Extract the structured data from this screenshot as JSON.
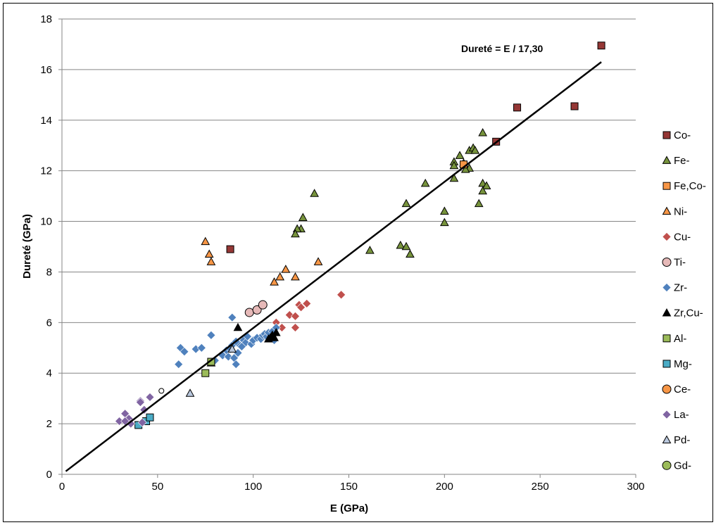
{
  "chart_data": {
    "type": "scatter",
    "title": "",
    "xlabel": "E (GPa)",
    "ylabel": "Dureté (GPa)",
    "xlim": [
      0,
      300
    ],
    "ylim": [
      0,
      18
    ],
    "xticks": [
      0,
      50,
      100,
      150,
      200,
      250,
      300
    ],
    "yticks": [
      0,
      2,
      4,
      6,
      8,
      10,
      12,
      14,
      16,
      18
    ],
    "grid": "horizontal",
    "legend_position": "right",
    "annotation": "Dureté = E / 17,30",
    "fit_line": {
      "x": [
        2,
        282
      ],
      "y": [
        0.12,
        16.3
      ]
    },
    "series": [
      {
        "name": "Co-",
        "marker": "square",
        "color": "#953735",
        "points": [
          [
            282,
            16.95
          ],
          [
            238,
            14.5
          ],
          [
            268,
            14.55
          ],
          [
            227,
            13.15
          ],
          [
            88,
            8.9
          ]
        ]
      },
      {
        "name": "Fe-",
        "marker": "triangle",
        "color": "#77933C",
        "points": [
          [
            220,
            13.5
          ],
          [
            213,
            12.8
          ],
          [
            215,
            12.9
          ],
          [
            216,
            12.8
          ],
          [
            208,
            12.6
          ],
          [
            205,
            12.35
          ],
          [
            205,
            12.2
          ],
          [
            210,
            12.3
          ],
          [
            213,
            12.1
          ],
          [
            211,
            12.05
          ],
          [
            205,
            11.7
          ],
          [
            190,
            11.5
          ],
          [
            220,
            11.5
          ],
          [
            222,
            11.4
          ],
          [
            220,
            11.2
          ],
          [
            132,
            11.1
          ],
          [
            218,
            10.7
          ],
          [
            180,
            10.7
          ],
          [
            200,
            10.4
          ],
          [
            126,
            10.15
          ],
          [
            200,
            9.95
          ],
          [
            125,
            9.7
          ],
          [
            123,
            9.7
          ],
          [
            122,
            9.5
          ],
          [
            161,
            8.85
          ],
          [
            177,
            9.05
          ],
          [
            180,
            9.0
          ],
          [
            182,
            8.7
          ],
          [
            78,
            4.4
          ]
        ]
      },
      {
        "name": "Fe,Co-",
        "marker": "square",
        "color": "#F79646",
        "points": [
          [
            210,
            12.25
          ]
        ]
      },
      {
        "name": "Ni-",
        "marker": "triangle",
        "color": "#F79646",
        "points": [
          [
            75,
            9.2
          ],
          [
            77,
            8.7
          ],
          [
            78,
            8.4
          ],
          [
            117,
            8.1
          ],
          [
            114,
            7.8
          ],
          [
            122,
            7.8
          ],
          [
            111,
            7.6
          ],
          [
            134,
            8.4
          ]
        ]
      },
      {
        "name": "Cu-",
        "marker": "diamond",
        "color": "#C0504D",
        "points": [
          [
            146,
            7.1
          ],
          [
            128,
            6.75
          ],
          [
            124,
            6.7
          ],
          [
            125,
            6.6
          ],
          [
            119,
            6.3
          ],
          [
            122,
            6.25
          ],
          [
            112,
            6.0
          ],
          [
            115,
            5.8
          ],
          [
            122,
            5.8
          ],
          [
            109,
            5.6
          ]
        ]
      },
      {
        "name": "Ti-",
        "marker": "circle",
        "color": "#E6B9B8",
        "points": [
          [
            98,
            6.4
          ],
          [
            102,
            6.5
          ],
          [
            105,
            6.7
          ]
        ]
      },
      {
        "name": "Zr-",
        "marker": "diamond",
        "color": "#4F81BD",
        "points": [
          [
            89,
            6.2
          ],
          [
            78,
            5.5
          ],
          [
            62,
            5.0
          ],
          [
            64,
            4.85
          ],
          [
            70,
            4.95
          ],
          [
            73,
            5.0
          ],
          [
            61,
            4.35
          ],
          [
            80,
            4.5
          ],
          [
            84,
            4.7
          ],
          [
            86,
            4.9
          ],
          [
            87,
            4.65
          ],
          [
            90,
            4.6
          ],
          [
            91,
            4.35
          ],
          [
            92,
            4.8
          ],
          [
            93,
            5.1
          ],
          [
            95,
            5.3
          ],
          [
            96,
            5.2
          ],
          [
            97,
            5.45
          ],
          [
            99,
            5.15
          ],
          [
            100,
            5.3
          ],
          [
            102,
            5.4
          ],
          [
            104,
            5.35
          ],
          [
            105,
            5.5
          ],
          [
            106,
            5.55
          ],
          [
            107,
            5.45
          ],
          [
            108,
            5.6
          ],
          [
            110,
            5.65
          ],
          [
            111,
            5.3
          ],
          [
            112,
            5.8
          ],
          [
            89,
            5.1
          ],
          [
            91,
            5.25
          ],
          [
            94,
            5.05
          ],
          [
            88,
            4.95
          ]
        ]
      },
      {
        "name": "Zr,Cu-",
        "marker": "triangle",
        "color": "#000000",
        "points": [
          [
            92,
            5.8
          ],
          [
            109,
            5.4
          ],
          [
            110,
            5.5
          ],
          [
            111,
            5.4
          ],
          [
            112,
            5.6
          ],
          [
            108,
            5.35
          ]
        ]
      },
      {
        "name": "Al-",
        "marker": "square",
        "color": "#9BBB59",
        "points": [
          [
            75,
            4.0
          ],
          [
            78,
            4.45
          ]
        ]
      },
      {
        "name": "Mg-",
        "marker": "square",
        "color": "#4BACC6",
        "points": [
          [
            40,
            1.95
          ],
          [
            44,
            2.1
          ],
          [
            46,
            2.25
          ]
        ]
      },
      {
        "name": "Ce-",
        "marker": "circle",
        "color": "#F79646",
        "points": []
      },
      {
        "name": "La-",
        "marker": "diamond",
        "color": "#8064A2",
        "points": [
          [
            41,
            2.9
          ],
          [
            46,
            3.05
          ],
          [
            43,
            2.55
          ],
          [
            33,
            2.4
          ],
          [
            35,
            2.2
          ],
          [
            30,
            2.1
          ],
          [
            33,
            2.1
          ],
          [
            36,
            2.0
          ],
          [
            42,
            2.05
          ],
          [
            41,
            2.85
          ]
        ]
      },
      {
        "name": "Pd-",
        "marker": "triangle",
        "color": "#B9C7DD",
        "points": [
          [
            67,
            3.2
          ],
          [
            89,
            4.95
          ]
        ]
      },
      {
        "name": "Gd-",
        "marker": "circle",
        "color": "#9BBB59",
        "points": []
      },
      {
        "name": "",
        "marker": "circle-open",
        "color": "#ffffff",
        "points": [
          [
            52,
            3.3
          ]
        ]
      }
    ]
  }
}
